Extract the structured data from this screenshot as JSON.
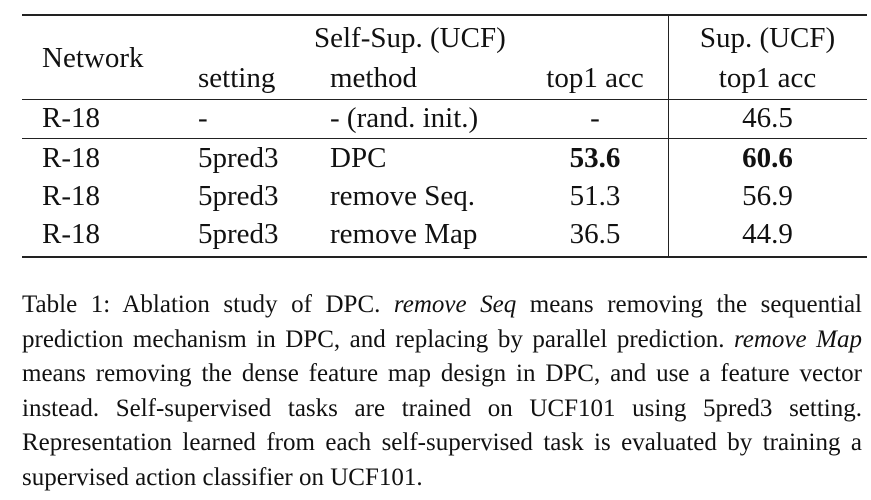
{
  "table": {
    "header": {
      "network": "Network",
      "self_sup_group": "Self-Sup. (UCF)",
      "sup_group": "Sup. (UCF)",
      "setting": "setting",
      "method": "method",
      "self_top1": "top1 acc",
      "sup_top1": "top1 acc"
    },
    "rows": [
      {
        "network": "R-18",
        "setting": "-",
        "method": "- (rand. init.)",
        "self_top1": "-",
        "sup_top1": "46.5",
        "bold": false
      },
      {
        "network": "R-18",
        "setting": "5pred3",
        "method": "DPC",
        "self_top1": "53.6",
        "sup_top1": "60.6",
        "bold": true
      },
      {
        "network": "R-18",
        "setting": "5pred3",
        "method": "remove Seq.",
        "self_top1": "51.3",
        "sup_top1": "56.9",
        "bold": false
      },
      {
        "network": "R-18",
        "setting": "5pred3",
        "method": "remove Map",
        "self_top1": "36.5",
        "sup_top1": "44.9",
        "bold": false
      }
    ]
  },
  "caption": {
    "label": "Table 1:",
    "part1": " Ablation study of DPC. ",
    "italic1": "remove Seq",
    "part2": " means removing the sequential prediction mechanism in DPC, and replacing by parallel prediction. ",
    "italic2": "remove Map",
    "part3": " means removing the dense feature map design in DPC, and use a feature vector instead. Self-supervised tasks are trained on UCF101 using 5pred3 setting. Representation learned from each self-supervised task is evaluated by training a supervised action classifier on UCF101."
  }
}
